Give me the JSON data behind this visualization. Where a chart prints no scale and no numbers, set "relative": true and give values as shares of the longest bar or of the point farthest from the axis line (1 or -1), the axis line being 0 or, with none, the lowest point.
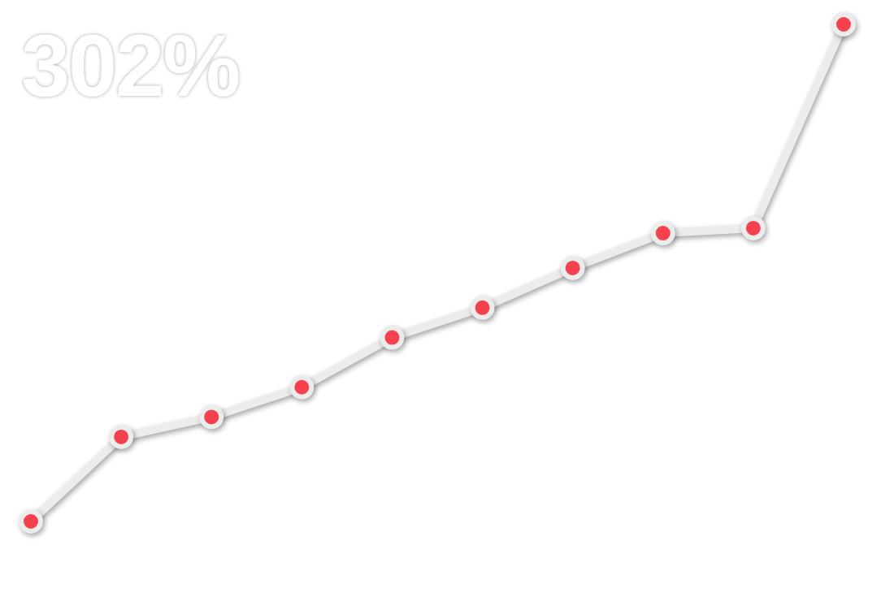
{
  "chart_data": {
    "type": "line",
    "title": "302%",
    "relative": true,
    "categories": [
      null,
      null,
      null,
      null,
      null,
      null,
      null,
      null,
      null,
      null
    ],
    "series": [
      {
        "color": "#ececec",
        "colors": [
          "#f5414d",
          "#f5414d",
          "#f5414d",
          "#f5414d",
          "#f5414d",
          "#f5414d",
          "#f5414d",
          "#f5414d",
          "#f5414d",
          "#f5414d"
        ],
        "values": [
          0,
          0.17,
          0.21,
          0.27,
          0.37,
          0.43,
          0.51,
          0.58,
          0.59,
          1
        ]
      }
    ],
    "marker": "circle",
    "line_style": "solid",
    "legend": false
  }
}
